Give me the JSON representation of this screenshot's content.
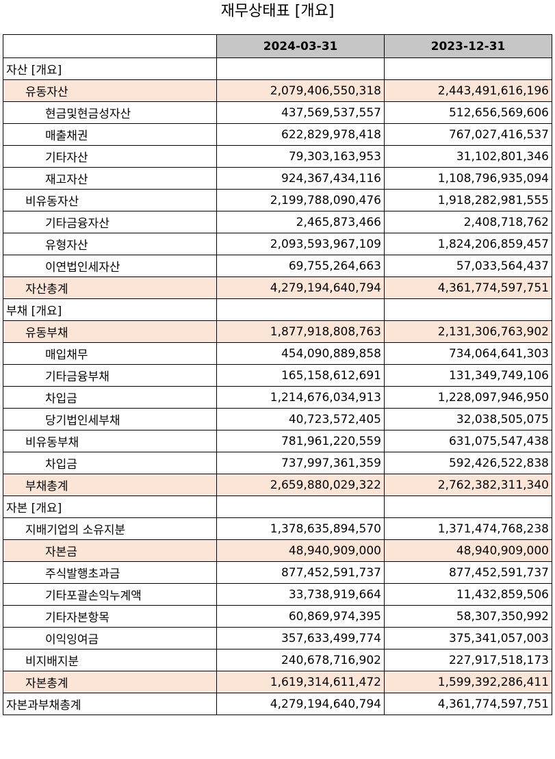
{
  "title": "재무상태표 [개요]",
  "columns": [
    "2024-03-31",
    "2023-12-31"
  ],
  "colors": {
    "header_bg": "#c6c6c6",
    "highlight_bg": "#fbe5d6"
  },
  "rows": [
    {
      "label": "자산 [개요]",
      "level": 0,
      "highlight": false,
      "v1": "",
      "v2": ""
    },
    {
      "label": "유동자산",
      "level": 1,
      "highlight": true,
      "v1": "2,079,406,550,318",
      "v2": "2,443,491,616,196"
    },
    {
      "label": "현금및현금성자산",
      "level": 2,
      "highlight": false,
      "v1": "437,569,537,557",
      "v2": "512,656,569,606"
    },
    {
      "label": "매출채권",
      "level": 2,
      "highlight": false,
      "v1": "622,829,978,418",
      "v2": "767,027,416,537"
    },
    {
      "label": "기타자산",
      "level": 2,
      "highlight": false,
      "v1": "79,303,163,953",
      "v2": "31,102,801,346"
    },
    {
      "label": "재고자산",
      "level": 2,
      "highlight": false,
      "v1": "924,367,434,116",
      "v2": "1,108,796,935,094"
    },
    {
      "label": "비유동자산",
      "level": 1,
      "highlight": false,
      "v1": "2,199,788,090,476",
      "v2": "1,918,282,981,555"
    },
    {
      "label": "기타금융자산",
      "level": 2,
      "highlight": false,
      "v1": "2,465,873,466",
      "v2": "2,408,718,762"
    },
    {
      "label": "유형자산",
      "level": 2,
      "highlight": false,
      "v1": "2,093,593,967,109",
      "v2": "1,824,206,859,457"
    },
    {
      "label": "이연법인세자산",
      "level": 2,
      "highlight": false,
      "v1": "69,755,264,663",
      "v2": "57,033,564,437"
    },
    {
      "label": "자산총계",
      "level": 1,
      "highlight": true,
      "v1": "4,279,194,640,794",
      "v2": "4,361,774,597,751"
    },
    {
      "label": "부채 [개요]",
      "level": 0,
      "highlight": false,
      "v1": "",
      "v2": ""
    },
    {
      "label": "유동부채",
      "level": 1,
      "highlight": true,
      "v1": "1,877,918,808,763",
      "v2": "2,131,306,763,902"
    },
    {
      "label": "매입채무",
      "level": 2,
      "highlight": false,
      "v1": "454,090,889,858",
      "v2": "734,064,641,303"
    },
    {
      "label": "기타금융부채",
      "level": 2,
      "highlight": false,
      "v1": "165,158,612,691",
      "v2": "131,349,749,106"
    },
    {
      "label": "차입금",
      "level": 2,
      "highlight": false,
      "v1": "1,214,676,034,913",
      "v2": "1,228,097,946,950"
    },
    {
      "label": "당기법인세부채",
      "level": 2,
      "highlight": false,
      "v1": "40,723,572,405",
      "v2": "32,038,505,075"
    },
    {
      "label": "비유동부채",
      "level": 1,
      "highlight": false,
      "v1": "781,961,220,559",
      "v2": "631,075,547,438"
    },
    {
      "label": "차입금",
      "level": 2,
      "highlight": false,
      "v1": "737,997,361,359",
      "v2": "592,426,522,838"
    },
    {
      "label": "부채총계",
      "level": 1,
      "highlight": true,
      "v1": "2,659,880,029,322",
      "v2": "2,762,382,311,340"
    },
    {
      "label": "자본 [개요]",
      "level": 0,
      "highlight": false,
      "v1": "",
      "v2": ""
    },
    {
      "label": "지배기업의 소유지분",
      "level": 1,
      "highlight": false,
      "v1": "1,378,635,894,570",
      "v2": "1,371,474,768,238"
    },
    {
      "label": "자본금",
      "level": 2,
      "highlight": true,
      "v1": "48,940,909,000",
      "v2": "48,940,909,000"
    },
    {
      "label": "주식발행초과금",
      "level": 2,
      "highlight": false,
      "v1": "877,452,591,737",
      "v2": "877,452,591,737"
    },
    {
      "label": "기타포괄손익누계액",
      "level": 2,
      "highlight": false,
      "v1": "33,738,919,664",
      "v2": "11,432,859,506"
    },
    {
      "label": "기타자본항목",
      "level": 2,
      "highlight": false,
      "v1": "60,869,974,395",
      "v2": "58,307,350,992"
    },
    {
      "label": "이익잉여금",
      "level": 2,
      "highlight": false,
      "v1": "357,633,499,774",
      "v2": "375,341,057,003"
    },
    {
      "label": "비지배지분",
      "level": 1,
      "highlight": false,
      "v1": "240,678,716,902",
      "v2": "227,917,518,173"
    },
    {
      "label": "자본총계",
      "level": 1,
      "highlight": true,
      "v1": "1,619,314,611,472",
      "v2": "1,599,392,286,411"
    },
    {
      "label": "자본과부채총계",
      "level": 0,
      "highlight": false,
      "v1": "4,279,194,640,794",
      "v2": "4,361,774,597,751"
    }
  ]
}
